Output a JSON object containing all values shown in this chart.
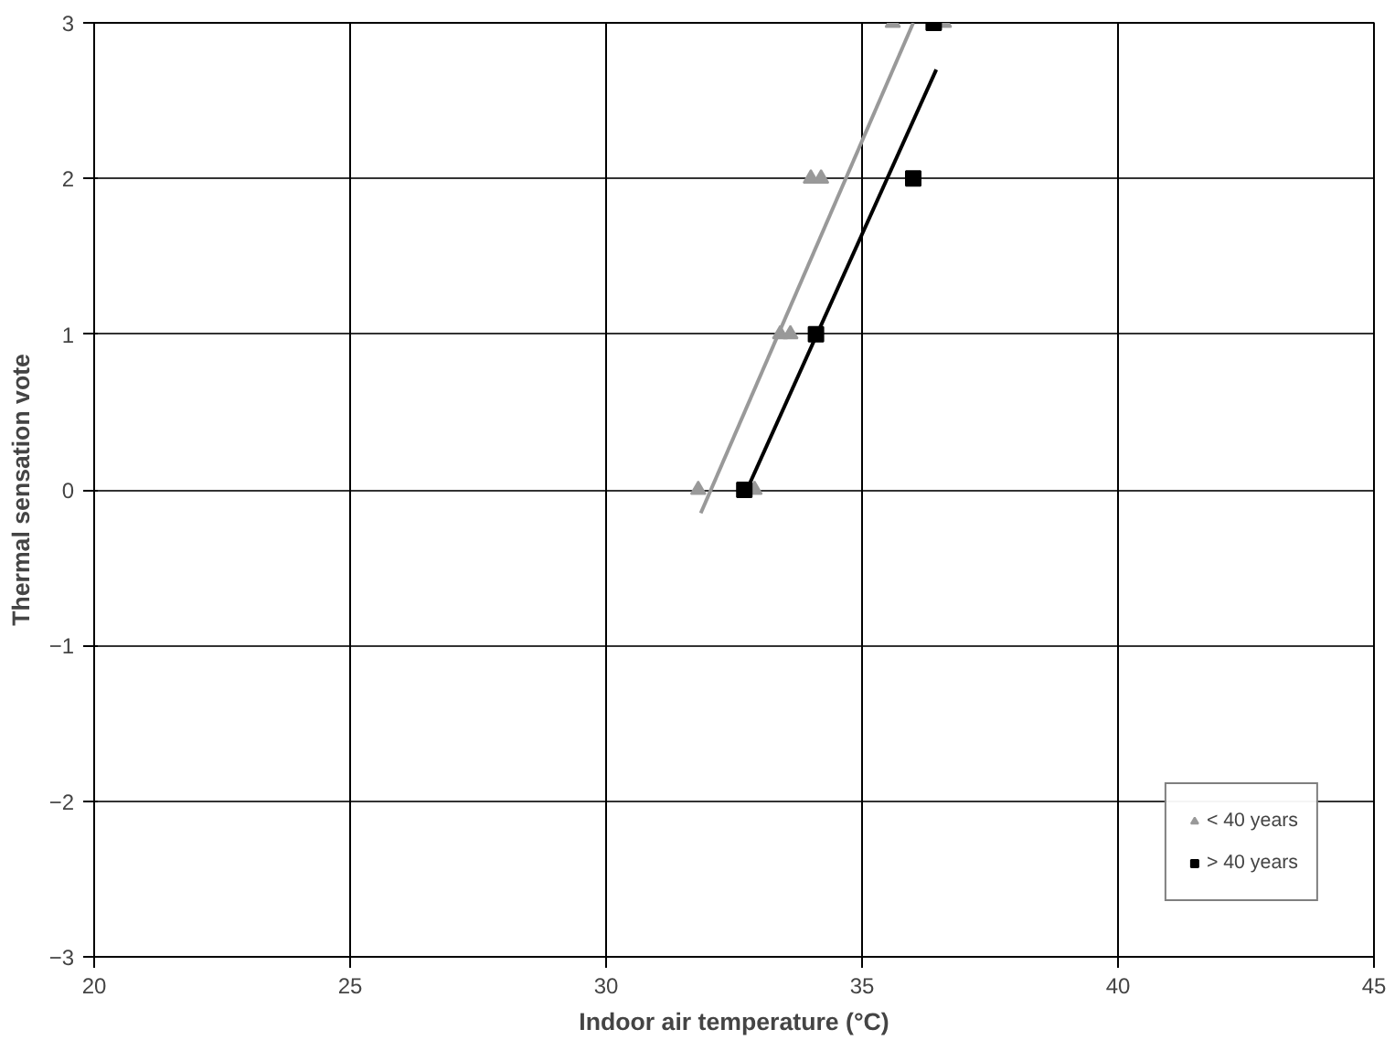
{
  "chart_data": {
    "type": "scatter",
    "xlabel": "Indoor air temperature (°C)",
    "ylabel": "Thermal sensation vote",
    "xlim": [
      20,
      45
    ],
    "xticks": [
      20,
      25,
      30,
      35,
      40,
      45
    ],
    "ylim": [
      -3,
      3
    ],
    "yticks": [
      -3,
      -2,
      -1,
      0,
      1,
      2,
      3
    ],
    "grid": true,
    "legend": "bottom right",
    "series": [
      {
        "name": "< 40 years",
        "color": "#999999",
        "marker": "triangle",
        "x": [
          31.8,
          32.9,
          33.4,
          33.6,
          34.0,
          34.2,
          35.6,
          36.6
        ],
        "values": [
          0,
          0,
          1,
          1,
          2,
          2,
          3,
          3
        ]
      },
      {
        "name": "> 40 years",
        "color": "#000000",
        "marker": "square",
        "x": [
          32.7,
          34.1,
          36.0,
          36.4
        ],
        "values": [
          0,
          1,
          2,
          3
        ]
      },
      {
        "type": "line",
        "color": "#999999",
        "x": [
          31.85,
          36.0
        ],
        "values": [
          -0.15,
          3
        ]
      },
      {
        "type": "line",
        "color": "#000000",
        "x": [
          32.75,
          36.45
        ],
        "values": [
          0,
          2.7
        ]
      }
    ]
  }
}
